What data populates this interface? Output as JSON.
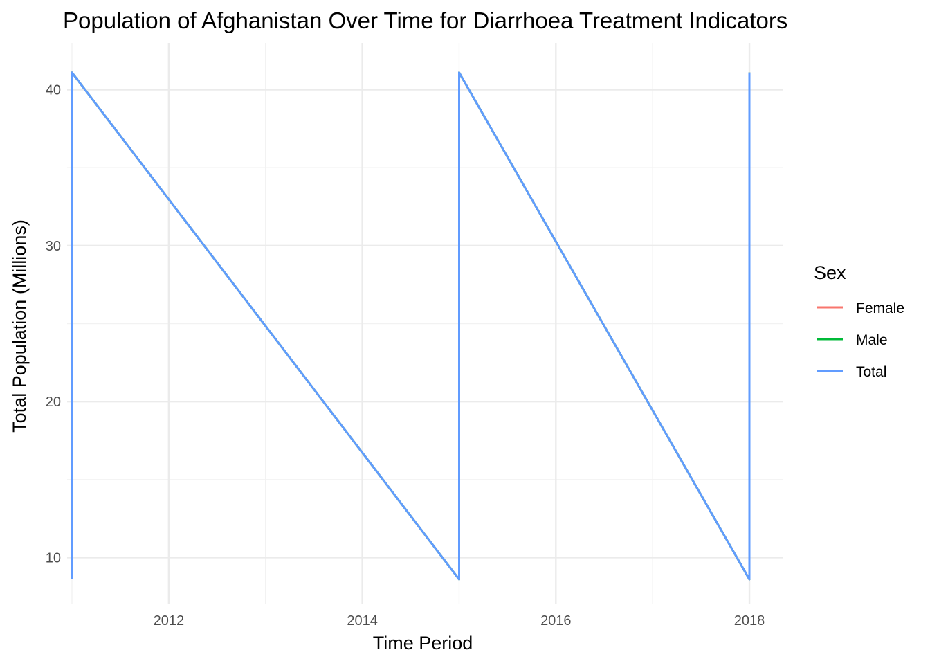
{
  "chart_data": {
    "type": "line",
    "title": "Population of Afghanistan Over Time for Diarrhoea Treatment Indicators",
    "xlabel": "Time Period",
    "ylabel": "Total Population (Millions)",
    "xlim": [
      2010.95,
      2018.35
    ],
    "ylim": [
      7.0,
      43.0
    ],
    "x_major_ticks": [
      2012,
      2014,
      2016,
      2018
    ],
    "x_minor_ticks": [
      2011,
      2013,
      2015,
      2017
    ],
    "y_major_ticks": [
      10,
      20,
      30,
      40
    ],
    "y_minor_ticks": [
      15,
      25,
      35
    ],
    "x_tick_labels": [
      "2012",
      "2014",
      "2016",
      "2018"
    ],
    "y_tick_labels": [
      "10",
      "20",
      "30",
      "40"
    ],
    "grid": true,
    "legend": {
      "title": "Sex",
      "placement": "right",
      "entries": [
        {
          "name": "Female",
          "color": "#f8766d"
        },
        {
          "name": "Male",
          "color": "#00ba38"
        },
        {
          "name": "Total",
          "color": "#619cff"
        }
      ]
    },
    "series": [
      {
        "name": "Female",
        "color": "#f8766d",
        "x": [
          2011,
          2011,
          2015,
          2015,
          2018,
          2018
        ],
        "values": [
          8.6,
          41.1,
          8.6,
          41.1,
          8.6,
          41.1
        ]
      },
      {
        "name": "Male",
        "color": "#00ba38",
        "x": [
          2011,
          2011,
          2015,
          2015,
          2018,
          2018
        ],
        "values": [
          8.6,
          41.1,
          8.6,
          41.1,
          8.6,
          41.1
        ]
      },
      {
        "name": "Total",
        "color": "#619cff",
        "x": [
          2011,
          2011,
          2015,
          2015,
          2018,
          2018
        ],
        "values": [
          8.6,
          41.1,
          8.6,
          41.1,
          8.6,
          41.1
        ]
      }
    ]
  }
}
